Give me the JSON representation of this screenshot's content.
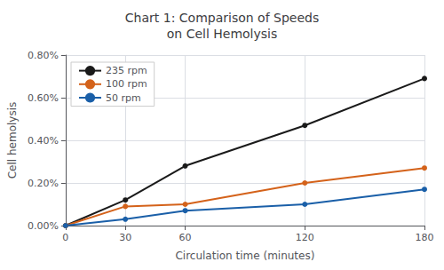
{
  "chart_data": {
    "type": "line",
    "title": "Chart 1: Comparison of Speeds\non Cell Hemolysis",
    "xlabel": "Circulation time (minutes)",
    "ylabel": "Cell hemolysis",
    "x": [
      0,
      30,
      60,
      120,
      180
    ],
    "series": [
      {
        "name": "235 rpm",
        "color": "#1a1a1a",
        "marker": "circle",
        "values": [
          0.0,
          0.0012,
          0.0028,
          0.0047,
          0.0069
        ]
      },
      {
        "name": "100 rpm",
        "color": "#d4621a",
        "marker": "circle",
        "values": [
          0.0,
          0.0009,
          0.001,
          0.002,
          0.0027
        ]
      },
      {
        "name": "50 rpm",
        "color": "#1a5fa8",
        "marker": "circle",
        "values": [
          0.0,
          0.0003,
          0.0007,
          0.001,
          0.0017
        ]
      }
    ],
    "xlim": [
      0,
      180
    ],
    "xticks": [
      0,
      30,
      60,
      120,
      180
    ],
    "ylim": [
      0.0,
      0.008
    ],
    "yticks": [
      {
        "value": 0.0,
        "label": "0.00%"
      },
      {
        "value": 0.002,
        "label": "0.20%"
      },
      {
        "value": 0.004,
        "label": "0.40%"
      },
      {
        "value": 0.006,
        "label": "0.60%"
      },
      {
        "value": 0.008,
        "label": "0.80%"
      }
    ],
    "grid": true,
    "legend": "upper left"
  }
}
